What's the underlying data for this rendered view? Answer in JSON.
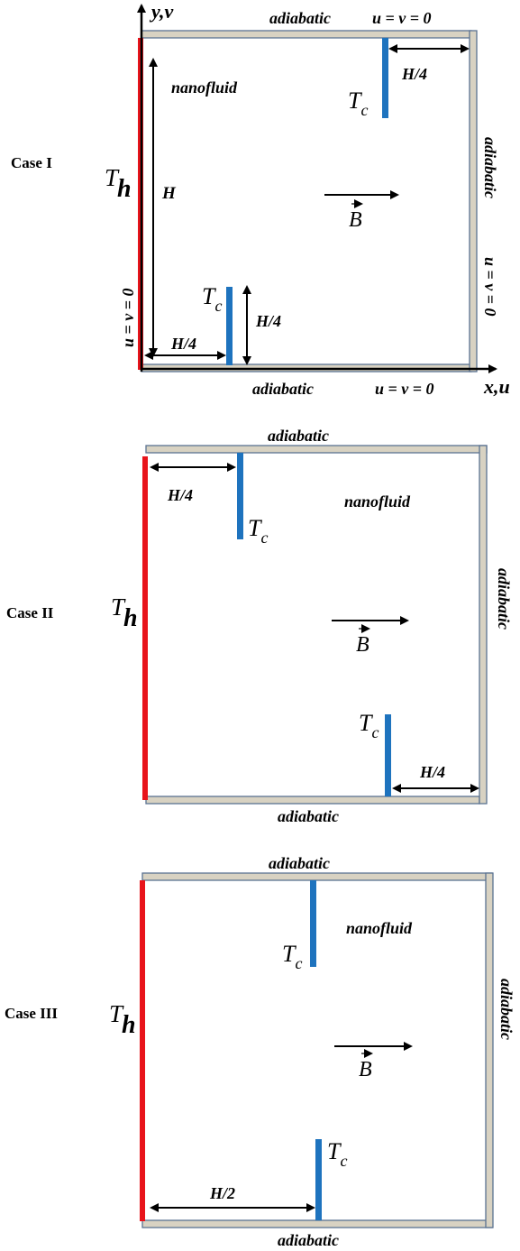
{
  "cases": [
    {
      "name": "Case I",
      "top_wall": "adiabatic",
      "top_bc": "u = v = 0",
      "right_wall": "adiabatic",
      "right_bc": "u = v = 0",
      "bottom_wall": "adiabatic",
      "bottom_bc": "u = v = 0",
      "left_bc": "u = v = 0",
      "fluid": "nanofluid",
      "hot": {
        "main": "T",
        "sub": "h"
      },
      "cold_top": {
        "main": "T",
        "sub": "c"
      },
      "cold_bottom": {
        "main": "T",
        "sub": "c"
      },
      "height_label": "H",
      "top_dim": "H/4",
      "bottom_dim": "H/4",
      "fin_height": "H/4",
      "field": "B",
      "axis_y": "y,v",
      "axis_x": "x,u"
    },
    {
      "name": "Case II",
      "top_wall": "adiabatic",
      "right_wall": "adiabatic",
      "bottom_wall": "adiabatic",
      "fluid": "nanofluid",
      "hot": {
        "main": "T",
        "sub": "h"
      },
      "cold_top": {
        "main": "T",
        "sub": "c"
      },
      "cold_bottom": {
        "main": "T",
        "sub": "c"
      },
      "top_dim": "H/4",
      "bottom_dim": "H/4",
      "field": "B"
    },
    {
      "name": "Case III",
      "top_wall": "adiabatic",
      "right_wall": "adiabatic",
      "bottom_wall": "adiabatic",
      "fluid": "nanofluid",
      "hot": {
        "main": "T",
        "sub": "h"
      },
      "cold_top": {
        "main": "T",
        "sub": "c"
      },
      "cold_bottom": {
        "main": "T",
        "sub": "c"
      },
      "bottom_dim": "H/2",
      "field": "B"
    }
  ],
  "colors": {
    "hot_wall": "#e8141b",
    "cold_wall": "#1e73be",
    "wall_fill": "#d8d2c2",
    "wall_border": "#5a7292"
  }
}
